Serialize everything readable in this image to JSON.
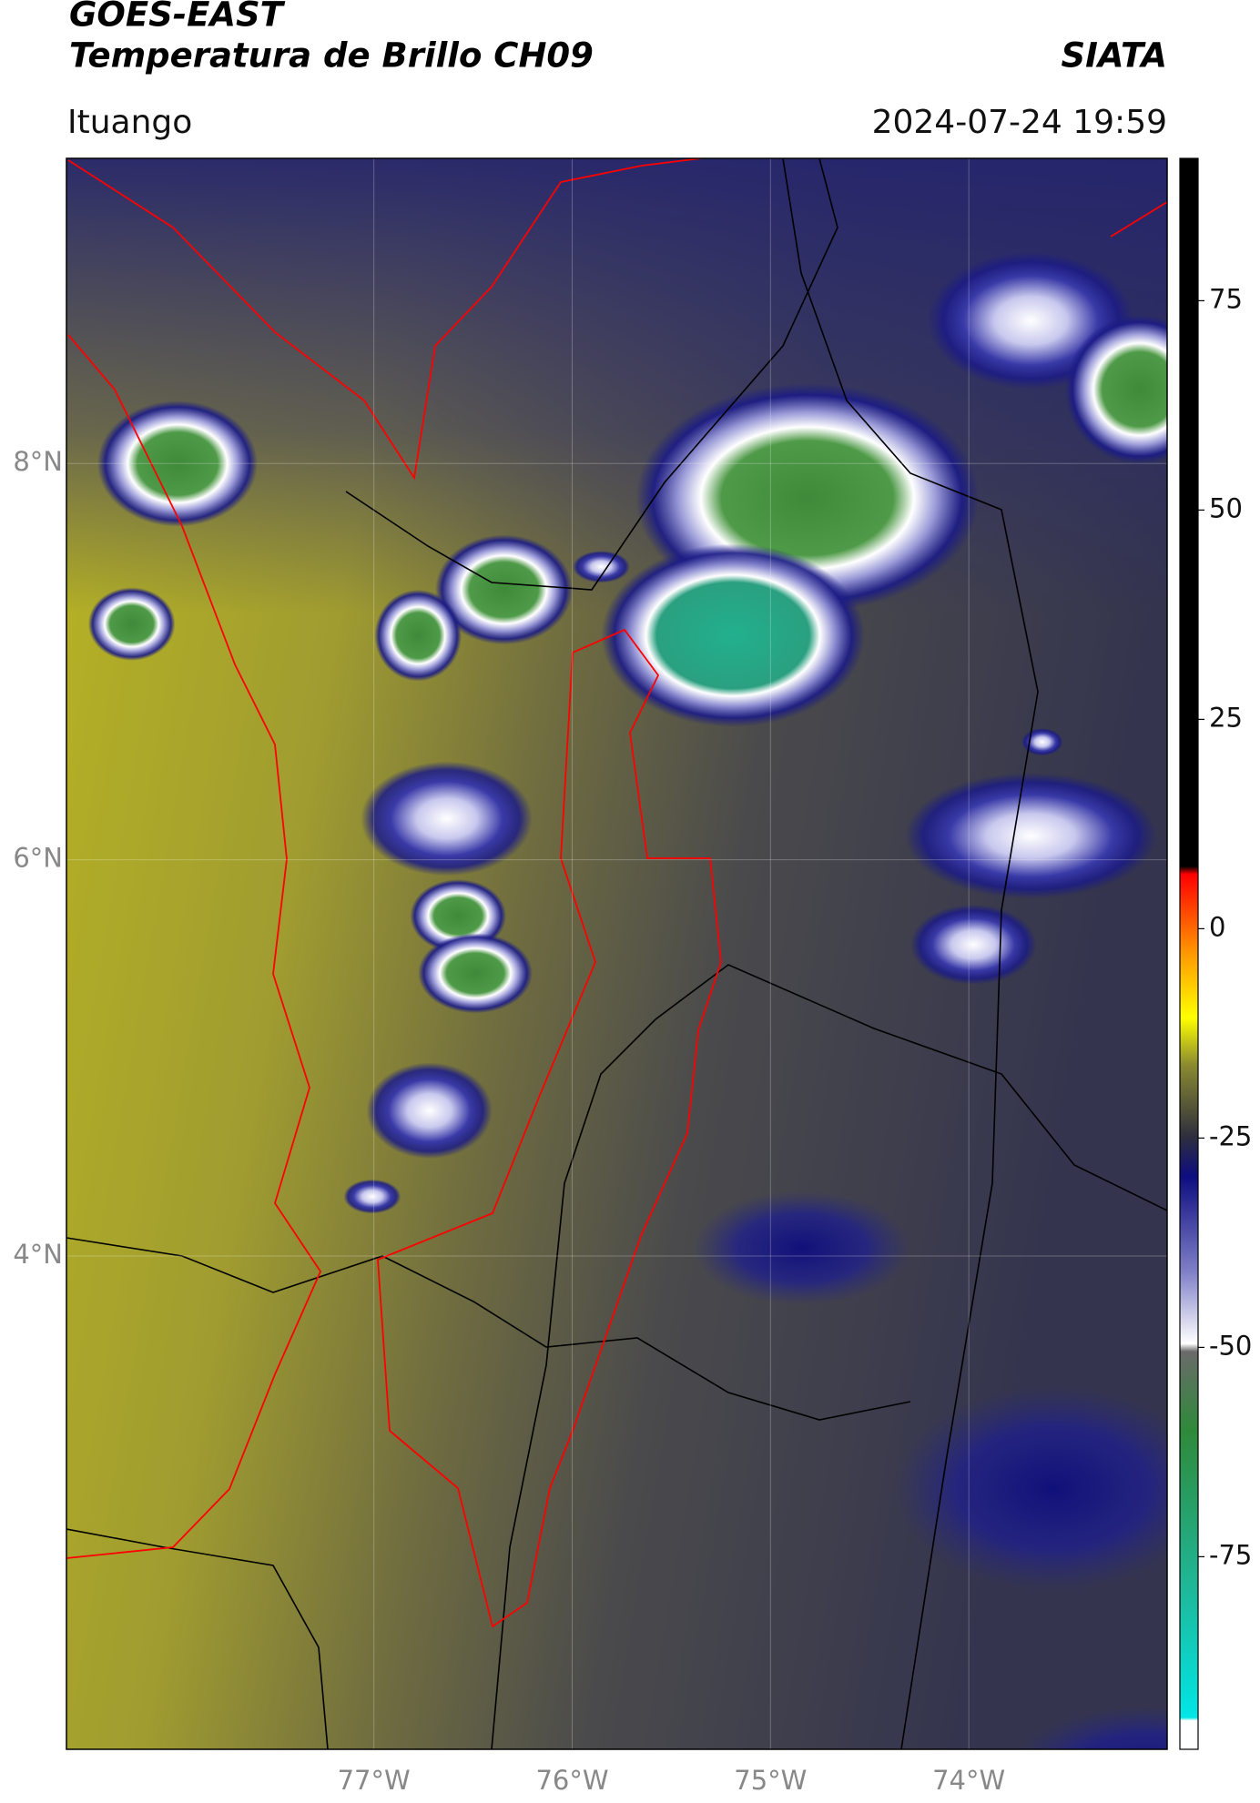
{
  "header": {
    "satellite": "GOES-EAST",
    "product": "Temperatura de Brillo CH09",
    "source": "SIATA",
    "location": "Ituango",
    "timestamp": "2024-07-24 19:59"
  },
  "map": {
    "lon_lim": [
      -78.55,
      -73.0
    ],
    "lat_lim": [
      1.51,
      9.54
    ],
    "lon_ticks": [
      {
        "value": -77,
        "label": "77°W"
      },
      {
        "value": -76,
        "label": "76°W"
      },
      {
        "value": -75,
        "label": "75°W"
      },
      {
        "value": -74,
        "label": "74°W"
      }
    ],
    "lat_ticks": [
      {
        "value": 8,
        "label": "8°N"
      },
      {
        "value": 6,
        "label": "6°N"
      },
      {
        "value": 4,
        "label": "4°N"
      }
    ],
    "grid": true
  },
  "colorbar": {
    "lim": [
      -98,
      92
    ],
    "ticks": [
      75,
      50,
      25,
      0,
      -25,
      -50,
      -75
    ]
  }
}
